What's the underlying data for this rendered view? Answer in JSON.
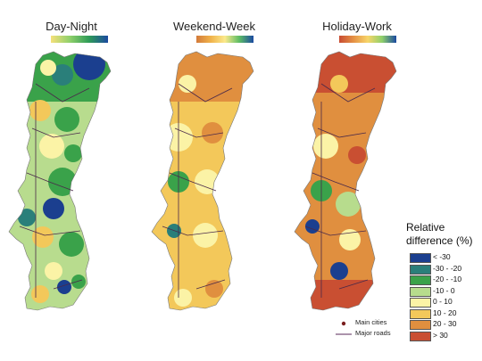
{
  "panels": [
    {
      "title": "Day-Night",
      "gradient": [
        "#f5e07a",
        "#8fd06b",
        "#2e9b57",
        "#1b4aa0"
      ]
    },
    {
      "title": "Weekend-Week",
      "gradient": [
        "#d37a3a",
        "#f0b24a",
        "#fbe98c",
        "#5dbd65",
        "#1b4aa0"
      ]
    },
    {
      "title": "Holiday-Work",
      "gradient": [
        "#c84c32",
        "#e59145",
        "#f7d56a",
        "#8fd06b",
        "#1b4aa0"
      ]
    }
  ],
  "legend": {
    "title_line1": "Relative",
    "title_line2": "difference (%)",
    "items": [
      {
        "label": "< -30",
        "color": "#1b3f8f"
      },
      {
        "label": "-30 - -20",
        "color": "#2a7f7a"
      },
      {
        "label": "-20 - -10",
        "color": "#3aa24a"
      },
      {
        "label": "-10 - 0",
        "color": "#b7dc8d"
      },
      {
        "label": "0 - 10",
        "color": "#fbf3a6"
      },
      {
        "label": "10 - 20",
        "color": "#f3c85a"
      },
      {
        "label": "20 - 30",
        "color": "#e08f3f"
      },
      {
        "label": "> 30",
        "color": "#c94f32"
      }
    ]
  },
  "keys": {
    "cities_label": "Main cities",
    "roads_label": "Major roads",
    "city_color": "#7a1f1f",
    "road_color": "#5a2a5a"
  }
}
